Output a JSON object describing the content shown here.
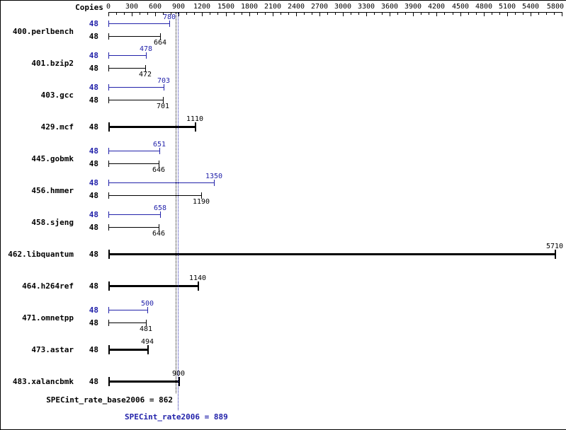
{
  "chart_data": {
    "type": "bar",
    "orientation": "horizontal",
    "copies_header": "Copies",
    "xlabel": "",
    "ylabel": "",
    "xlim": [
      0,
      5800
    ],
    "x_major_ticks": [
      0,
      300,
      600,
      900,
      1200,
      1500,
      1800,
      2100,
      2400,
      2700,
      3000,
      3300,
      3600,
      3900,
      4200,
      4500,
      4800,
      5100,
      5400,
      5800
    ],
    "x_minor_tick_interval": 100,
    "grid": false,
    "colors": {
      "peak": "#2222aa",
      "base": "#000000"
    },
    "benchmarks": [
      {
        "name": "400.perlbench",
        "bars": [
          {
            "kind": "peak",
            "copies": 48,
            "value": 780
          },
          {
            "kind": "base",
            "copies": 48,
            "value": 664
          }
        ]
      },
      {
        "name": "401.bzip2",
        "bars": [
          {
            "kind": "peak",
            "copies": 48,
            "value": 478
          },
          {
            "kind": "base",
            "copies": 48,
            "value": 472
          }
        ]
      },
      {
        "name": "403.gcc",
        "bars": [
          {
            "kind": "peak",
            "copies": 48,
            "value": 703
          },
          {
            "kind": "base",
            "copies": 48,
            "value": 701
          }
        ]
      },
      {
        "name": "429.mcf",
        "bars": [
          {
            "kind": "base-only",
            "copies": 48,
            "value": 1110
          }
        ]
      },
      {
        "name": "445.gobmk",
        "bars": [
          {
            "kind": "peak",
            "copies": 48,
            "value": 651
          },
          {
            "kind": "base",
            "copies": 48,
            "value": 646
          }
        ]
      },
      {
        "name": "456.hmmer",
        "bars": [
          {
            "kind": "peak",
            "copies": 48,
            "value": 1350
          },
          {
            "kind": "base",
            "copies": 48,
            "value": 1190
          }
        ]
      },
      {
        "name": "458.sjeng",
        "bars": [
          {
            "kind": "peak",
            "copies": 48,
            "value": 658
          },
          {
            "kind": "base",
            "copies": 48,
            "value": 646
          }
        ]
      },
      {
        "name": "462.libquantum",
        "bars": [
          {
            "kind": "base-only",
            "copies": 48,
            "value": 5710
          }
        ]
      },
      {
        "name": "464.h264ref",
        "bars": [
          {
            "kind": "base-only",
            "copies": 48,
            "value": 1140
          }
        ]
      },
      {
        "name": "471.omnetpp",
        "bars": [
          {
            "kind": "peak",
            "copies": 48,
            "value": 500
          },
          {
            "kind": "base",
            "copies": 48,
            "value": 481
          }
        ]
      },
      {
        "name": "473.astar",
        "bars": [
          {
            "kind": "base-only",
            "copies": 48,
            "value": 494
          }
        ]
      },
      {
        "name": "483.xalancbmk",
        "bars": [
          {
            "kind": "base-only",
            "copies": 48,
            "value": 900
          }
        ]
      }
    ],
    "reference_lines": [
      {
        "name": "base",
        "label": "SPECint_rate_base2006 = 862",
        "value": 862,
        "color": "#000000",
        "style": "dotted"
      },
      {
        "name": "peak",
        "label": "SPECint_rate2006 = 889",
        "value": 889,
        "color": "#2222aa",
        "style": "dotted"
      }
    ]
  }
}
